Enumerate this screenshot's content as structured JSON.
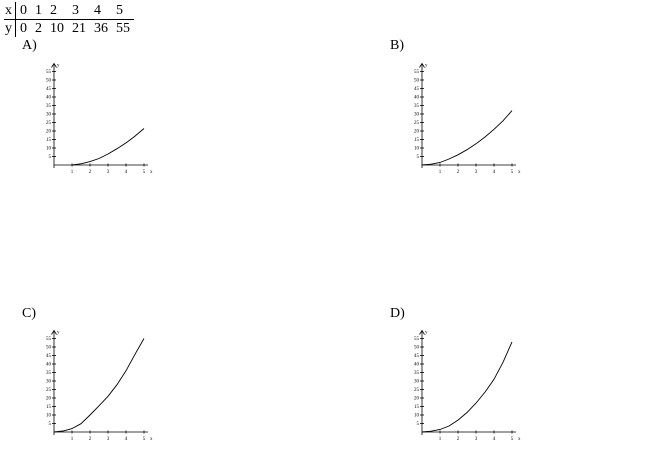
{
  "table": {
    "x_header": "x",
    "y_header": "y",
    "x_values": [
      "0",
      "1",
      "2",
      "3",
      "4",
      "5"
    ],
    "y_values": [
      "0",
      "2",
      "10",
      "21",
      "36",
      "55"
    ]
  },
  "options": [
    {
      "label": "A)"
    },
    {
      "label": "B)"
    },
    {
      "label": "C)"
    },
    {
      "label": "D)"
    }
  ],
  "chart_data": [
    {
      "type": "line",
      "option": "A)",
      "xlabel": "x",
      "ylabel": "y",
      "xlim": [
        0,
        5
      ],
      "ylim": [
        0,
        55
      ],
      "x_ticks": [
        1,
        2,
        3,
        4,
        5
      ],
      "y_ticks": [
        5,
        10,
        15,
        20,
        25,
        30,
        35,
        40,
        45,
        50,
        55
      ],
      "x": [
        1,
        1.5,
        2,
        2.5,
        3,
        3.5,
        4,
        4.5,
        5
      ],
      "y": [
        0,
        0.7,
        2,
        3.8,
        6.5,
        9.6,
        13,
        17,
        21.5
      ]
    },
    {
      "type": "line",
      "option": "B)",
      "xlabel": "x",
      "ylabel": "y",
      "xlim": [
        0,
        5
      ],
      "ylim": [
        0,
        55
      ],
      "x_ticks": [
        1,
        2,
        3,
        4,
        5
      ],
      "y_ticks": [
        5,
        10,
        15,
        20,
        25,
        30,
        35,
        40,
        45,
        50,
        55
      ],
      "x": [
        0,
        0.5,
        1,
        1.5,
        2,
        2.5,
        3,
        3.5,
        4,
        4.5,
        5
      ],
      "y": [
        0,
        0.5,
        1.5,
        3.5,
        6,
        9,
        12.5,
        16.5,
        21,
        26,
        32
      ]
    },
    {
      "type": "line",
      "option": "C)",
      "xlabel": "x",
      "ylabel": "y",
      "xlim": [
        0,
        5
      ],
      "ylim": [
        0,
        55
      ],
      "x_ticks": [
        1,
        2,
        3,
        4,
        5
      ],
      "y_ticks": [
        5,
        10,
        15,
        20,
        25,
        30,
        35,
        40,
        45,
        50,
        55
      ],
      "x": [
        0,
        0.5,
        1,
        1.5,
        2,
        2.5,
        3,
        3.5,
        4,
        4.5,
        5
      ],
      "y": [
        0,
        0.6,
        2,
        4.9,
        10,
        15.4,
        21,
        27.8,
        36,
        45.7,
        55
      ]
    },
    {
      "type": "line",
      "option": "D)",
      "xlabel": "x",
      "ylabel": "y",
      "xlim": [
        0,
        5
      ],
      "ylim": [
        0,
        55
      ],
      "x_ticks": [
        1,
        2,
        3,
        4,
        5
      ],
      "y_ticks": [
        5,
        10,
        15,
        20,
        25,
        30,
        35,
        40,
        45,
        50,
        55
      ],
      "x": [
        0,
        0.5,
        1,
        1.5,
        2,
        2.5,
        3,
        3.5,
        4,
        4.5,
        5
      ],
      "y": [
        0,
        0.5,
        1.5,
        3.5,
        7,
        11.5,
        17,
        23.5,
        31,
        41,
        53
      ]
    }
  ]
}
